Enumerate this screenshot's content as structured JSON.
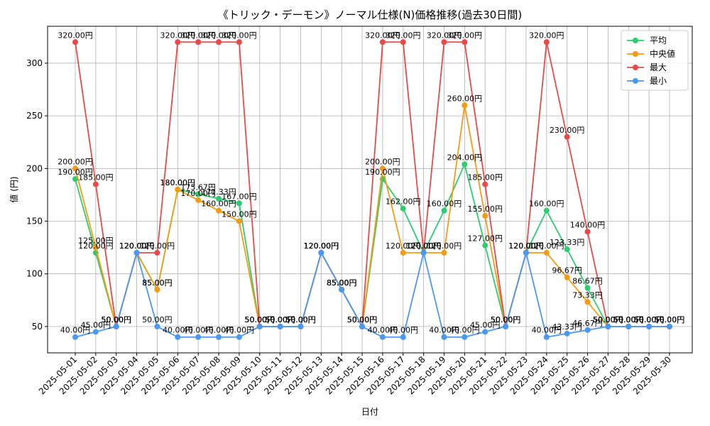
{
  "chart_data": {
    "type": "line",
    "title": "《トリック・デーモン》ノーマル仕様(N)価格推移(過去30日間)",
    "xlabel": "日付",
    "ylabel": "値 (円)",
    "ylim": [
      25,
      335
    ],
    "yticks": [
      50,
      100,
      150,
      200,
      250,
      300
    ],
    "grid": true,
    "legend_position": "top-right",
    "value_suffix": "円",
    "categories": [
      "2025-05-01",
      "2025-05-02",
      "2025-05-03",
      "2025-05-04",
      "2025-05-05",
      "2025-05-06",
      "2025-05-07",
      "2025-05-08",
      "2025-05-09",
      "2025-05-10",
      "2025-05-11",
      "2025-05-12",
      "2025-05-13",
      "2025-05-14",
      "2025-05-15",
      "2025-05-16",
      "2025-05-17",
      "2025-05-18",
      "2025-05-19",
      "2025-05-20",
      "2025-05-21",
      "2025-05-22",
      "2025-05-23",
      "2025-05-24",
      "2025-05-25",
      "2025-05-26",
      "2025-05-27",
      "2025-05-28",
      "2025-05-29",
      "2025-05-30"
    ],
    "series": [
      {
        "name": "平均",
        "color": "#2ecc71",
        "values": [
          190,
          120,
          50,
          120,
          85,
          180,
          175.67,
          171.33,
          167,
          50,
          50,
          50,
          120,
          85,
          50,
          190,
          162,
          120,
          160,
          204,
          127,
          50,
          120,
          160,
          123.33,
          86.67,
          50,
          50,
          50,
          50
        ]
      },
      {
        "name": "中央値",
        "color": "#f39c12",
        "values": [
          200,
          125,
          50,
          120,
          85,
          180,
          170,
          160,
          150,
          50,
          50,
          50,
          120,
          85,
          50,
          200,
          120,
          120,
          120,
          260,
          155,
          50,
          120,
          120,
          96.67,
          73.33,
          50,
          50,
          50,
          50
        ]
      },
      {
        "name": "最大",
        "color": "#e84a4a",
        "values": [
          320,
          185,
          50,
          120,
          120,
          320,
          320,
          320,
          320,
          50,
          50,
          50,
          120,
          85,
          50,
          320,
          320,
          120,
          320,
          320,
          185,
          50,
          120,
          320,
          230,
          140,
          50,
          50,
          50,
          50
        ]
      },
      {
        "name": "最小",
        "color": "#4a98f0",
        "values": [
          40,
          45,
          50,
          120,
          50,
          40,
          40,
          40,
          40,
          50,
          50,
          50,
          120,
          85,
          50,
          40,
          40,
          120,
          40,
          40,
          45,
          50,
          120,
          40,
          43.33,
          46.67,
          50,
          50,
          50,
          50
        ]
      }
    ]
  }
}
